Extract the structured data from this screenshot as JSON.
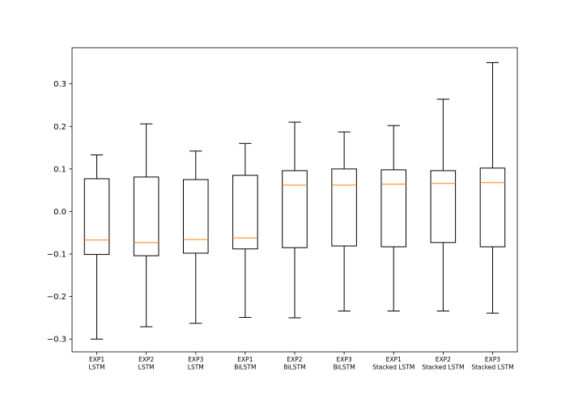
{
  "chart_data": {
    "type": "boxplot",
    "title": "",
    "xlabel": "",
    "ylabel": "",
    "ylim": [
      -0.33,
      0.385
    ],
    "yticks": [
      -0.3,
      -0.2,
      -0.1,
      0.0,
      0.1,
      0.2,
      0.3
    ],
    "ytick_labels": [
      "−0.3",
      "−0.2",
      "−0.1",
      "0.0",
      "0.1",
      "0.2",
      "0.3"
    ],
    "grid": false,
    "colors": {
      "box": "#000000",
      "median": "#ff7f0e",
      "axes": "#000000"
    },
    "categories": [
      [
        "EXP1",
        "LSTM"
      ],
      [
        "EXP2",
        "LSTM"
      ],
      [
        "EXP3",
        "LSTM"
      ],
      [
        "EXP1",
        "BiLSTM"
      ],
      [
        "EXP2",
        "BiLSTM"
      ],
      [
        "EXP3",
        "BiLSTM"
      ],
      [
        "EXP1",
        "Stacked LSTM"
      ],
      [
        "EXP2",
        "Stacked LSTM"
      ],
      [
        "EXP3",
        "Stacked LSTM"
      ]
    ],
    "boxes": [
      {
        "whislo": -0.3,
        "q1": -0.101,
        "med": -0.067,
        "q3": 0.077,
        "whishi": 0.133
      },
      {
        "whislo": -0.271,
        "q1": -0.104,
        "med": -0.073,
        "q3": 0.081,
        "whishi": 0.206
      },
      {
        "whislo": -0.263,
        "q1": -0.098,
        "med": -0.066,
        "q3": 0.075,
        "whishi": 0.142
      },
      {
        "whislo": -0.249,
        "q1": -0.088,
        "med": -0.062,
        "q3": 0.085,
        "whishi": 0.16
      },
      {
        "whislo": -0.25,
        "q1": -0.085,
        "med": 0.062,
        "q3": 0.096,
        "whishi": 0.21
      },
      {
        "whislo": -0.234,
        "q1": -0.081,
        "med": 0.062,
        "q3": 0.1,
        "whishi": 0.187
      },
      {
        "whislo": -0.234,
        "q1": -0.083,
        "med": 0.064,
        "q3": 0.098,
        "whishi": 0.202
      },
      {
        "whislo": -0.234,
        "q1": -0.073,
        "med": 0.066,
        "q3": 0.096,
        "whishi": 0.264
      },
      {
        "whislo": -0.239,
        "q1": -0.083,
        "med": 0.068,
        "q3": 0.102,
        "whishi": 0.35
      }
    ]
  }
}
